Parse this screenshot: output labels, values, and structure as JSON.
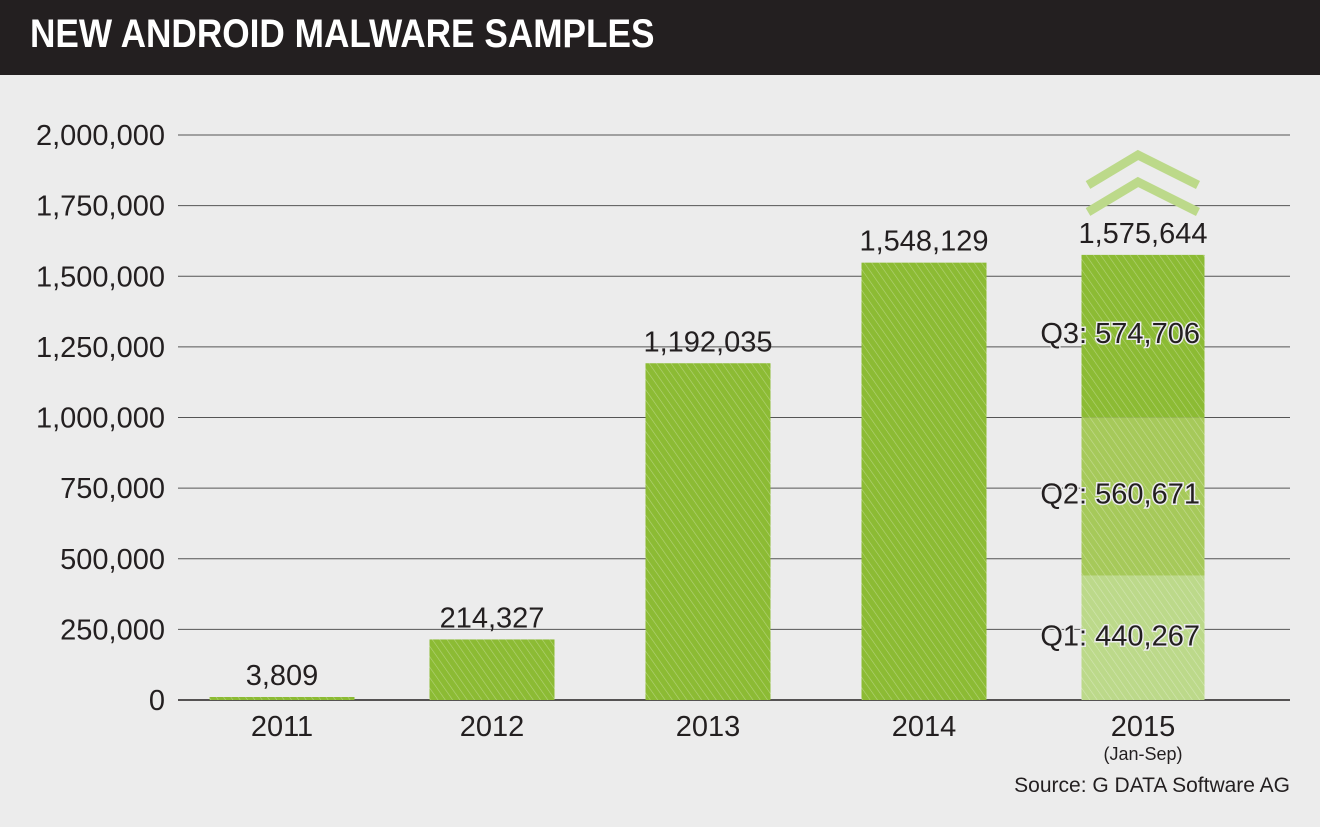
{
  "header": {
    "title": "NEW ANDROID MALWARE SAMPLES"
  },
  "source": "Source: G DATA Software AG",
  "colors": {
    "bar": "#8cbb34",
    "q1": "#bcd98a",
    "q2": "#a6c95a",
    "q3": "#8cbb34",
    "arrow": "#bcd98a",
    "header_bg": "#231f20",
    "background": "#ececec"
  },
  "chart_data": {
    "type": "bar",
    "title": "NEW ANDROID MALWARE SAMPLES",
    "xlabel": "",
    "ylabel": "",
    "ylim": [
      0,
      2000000
    ],
    "yticks": [
      "0",
      "250,000",
      "500,000",
      "750,000",
      "1,000,000",
      "1,250,000",
      "1,500,000",
      "1,750,000",
      "2,000,000"
    ],
    "grid": true,
    "categories": [
      "2011",
      "2012",
      "2013",
      "2014",
      "2015"
    ],
    "category_notes": [
      "",
      "",
      "",
      "",
      "(Jan-Sep)"
    ],
    "values": [
      3809,
      214327,
      1192035,
      1548129,
      1575644
    ],
    "value_labels": [
      "3,809",
      "214,327",
      "1,192,035",
      "1,548,129",
      "1,575,644"
    ],
    "stacked_2015": [
      {
        "name": "Q1",
        "value": 440267,
        "label": "Q1: 440,267"
      },
      {
        "name": "Q2",
        "value": 560671,
        "label": "Q2: 560,671"
      },
      {
        "name": "Q3",
        "value": 574706,
        "label": "Q3: 574,706"
      }
    ],
    "annotation": "upward double-chevron arrow above 2015"
  }
}
